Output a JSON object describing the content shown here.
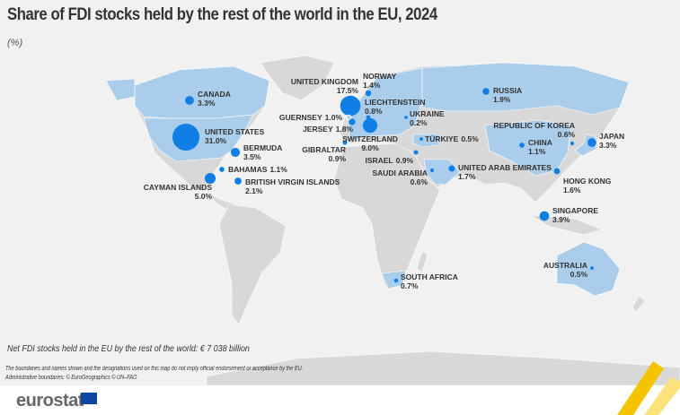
{
  "title": "Share of FDI stocks held by the rest of the world in the EU, 2024",
  "unit": "(%)",
  "colors": {
    "bubble": "#0f7fe6",
    "highlight": "#a9cdea",
    "land": "#d8d8d8",
    "background": "#f1f1f1"
  },
  "countries": [
    {
      "name": "UNITED STATES",
      "value": 31.0,
      "label": "31.0%"
    },
    {
      "name": "CANADA",
      "value": 3.3,
      "label": "3.3%"
    },
    {
      "name": "BERMUDA",
      "value": 3.5,
      "label": "3.5%"
    },
    {
      "name": "BAHAMAS",
      "value": 1.1,
      "label": "1.1%"
    },
    {
      "name": "CAYMAN ISLANDS",
      "value": 5.0,
      "label": "5.0%"
    },
    {
      "name": "BRITISH VIRGIN ISLANDS",
      "value": 2.1,
      "label": "2.1%"
    },
    {
      "name": "UNITED KINGDOM",
      "value": 17.5,
      "label": "17.5%"
    },
    {
      "name": "GUERNSEY",
      "value": 1.0,
      "label": "1.0%"
    },
    {
      "name": "JERSEY",
      "value": 1.8,
      "label": "1.8%"
    },
    {
      "name": "NORWAY",
      "value": 1.4,
      "label": "1.4%"
    },
    {
      "name": "LIECHTENSTEIN",
      "value": 0.8,
      "label": "0.8%"
    },
    {
      "name": "SWITZERLAND",
      "value": 9.0,
      "label": "9.0%"
    },
    {
      "name": "GIBRALTAR",
      "value": 0.9,
      "label": "0.9%"
    },
    {
      "name": "UKRAINE",
      "value": 0.2,
      "label": "0.2%"
    },
    {
      "name": "TÜRKIYE",
      "value": 0.5,
      "label": "0.5%"
    },
    {
      "name": "ISRAEL",
      "value": 0.9,
      "label": "0.9%"
    },
    {
      "name": "SAUDI ARABIA",
      "value": 0.6,
      "label": "0.6%"
    },
    {
      "name": "UNITED ARAB EMIRATES",
      "value": 1.7,
      "label": "1.7%"
    },
    {
      "name": "RUSSIA",
      "value": 1.9,
      "label": "1.9%"
    },
    {
      "name": "REPUBLIC OF KOREA",
      "value": 0.6,
      "label": "0.6%"
    },
    {
      "name": "CHINA",
      "value": 1.1,
      "label": "1.1%"
    },
    {
      "name": "JAPAN",
      "value": 3.3,
      "label": "3.3%"
    },
    {
      "name": "HONG KONG",
      "value": 1.6,
      "label": "1.6%"
    },
    {
      "name": "SINGAPORE",
      "value": 3.9,
      "label": "3.9%"
    },
    {
      "name": "AUSTRALIA",
      "value": 0.5,
      "label": "0.5%"
    },
    {
      "name": "SOUTH AFRICA",
      "value": 0.7,
      "label": "0.7%"
    }
  ],
  "footer": {
    "total": "Net FDI stocks held in the EU by the rest of the world: € 7 038 billion",
    "disclaimer": "The boundaries and names shown and the designations used on this map do not imply official endorsement or acceptance by the EU.",
    "admin": "Administrative boundaries: © EuroGeographics © UN–FAO",
    "logo": "eurostat"
  }
}
